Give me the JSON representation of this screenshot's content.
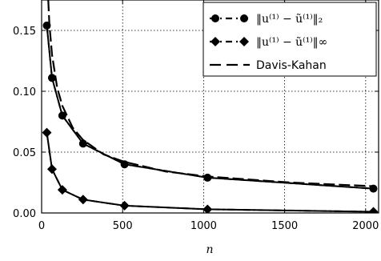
{
  "chart_data": {
    "type": "line",
    "xlabel": "n",
    "ylabel": "",
    "xlim": [
      0,
      2080
    ],
    "ylim": [
      0,
      0.175
    ],
    "xticks": [
      0,
      500,
      1000,
      1500,
      2000
    ],
    "xtick_labels": [
      "0",
      "500",
      "1000",
      "1500",
      "2000"
    ],
    "yticks": [
      0,
      0.05,
      0.1,
      0.15
    ],
    "ytick_labels": [
      "0.00",
      "0.05",
      "0.10",
      "0.15"
    ],
    "grid": true,
    "legend_position": "top-right",
    "series": [
      {
        "name": "‖u⁽¹⁾ − ũ⁽¹⁾‖₂",
        "style": "dash-dot",
        "marker": "circle",
        "x": [
          32,
          64,
          128,
          256,
          512,
          1024,
          2048
        ],
        "y": [
          0.154,
          0.111,
          0.08,
          0.057,
          0.04,
          0.029,
          0.02
        ]
      },
      {
        "name": "‖u⁽¹⁾ − ũ⁽¹⁾‖∞",
        "style": "dash-dot",
        "marker": "diamond",
        "x": [
          32,
          64,
          128,
          256,
          512,
          1024,
          2048
        ],
        "y": [
          0.066,
          0.036,
          0.019,
          0.011,
          0.006,
          0.003,
          0.001
        ]
      },
      {
        "name": "Davis-Kahan",
        "style": "dashed",
        "marker": "none",
        "x": [
          32,
          48,
          64,
          96,
          128,
          192,
          256,
          384,
          512,
          768,
          1024,
          1536,
          2048
        ],
        "y": [
          0.2,
          0.155,
          0.13,
          0.103,
          0.088,
          0.07,
          0.06,
          0.048,
          0.042,
          0.034,
          0.03,
          0.025,
          0.022
        ]
      },
      {
        "name": "",
        "style": "solid",
        "marker": "none",
        "x": [
          32,
          64,
          128,
          256,
          512,
          1024,
          2048
        ],
        "y": [
          0.154,
          0.111,
          0.08,
          0.057,
          0.04,
          0.029,
          0.02
        ]
      },
      {
        "name": "",
        "style": "solid",
        "marker": "none",
        "x": [
          32,
          64,
          128,
          256,
          512,
          1024,
          2048
        ],
        "y": [
          0.066,
          0.036,
          0.019,
          0.011,
          0.006,
          0.003,
          0.001
        ]
      }
    ]
  }
}
